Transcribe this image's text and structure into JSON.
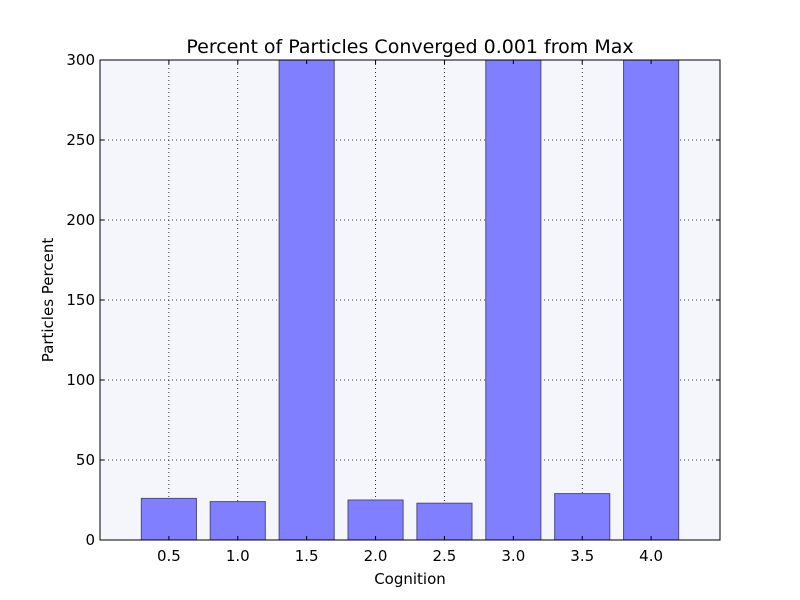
{
  "chart_data": {
    "type": "bar",
    "title": "Percent of Particles Converged 0.001 from Max",
    "xlabel": "Cognition",
    "ylabel": "Particles Percent",
    "categories": [
      "0.5",
      "1.0",
      "1.5",
      "2.0",
      "2.5",
      "3.0",
      "3.5",
      "4.0"
    ],
    "x": [
      0.5,
      1.0,
      1.5,
      2.0,
      2.5,
      3.0,
      3.5,
      4.0
    ],
    "values": [
      26,
      24,
      300,
      25,
      23,
      300,
      29,
      300
    ],
    "xlim": [
      0.0,
      4.5
    ],
    "ylim": [
      0,
      300
    ],
    "yticks": [
      0,
      50,
      100,
      150,
      200,
      250,
      300
    ],
    "ytick_labels": [
      "0",
      "50",
      "100",
      "150",
      "200",
      "250",
      "300"
    ],
    "grid": true,
    "colors": {
      "bar_fill": "#7f7fff",
      "bar_edge": "#4d4d80",
      "plot_background": "#f4f6fb"
    }
  }
}
